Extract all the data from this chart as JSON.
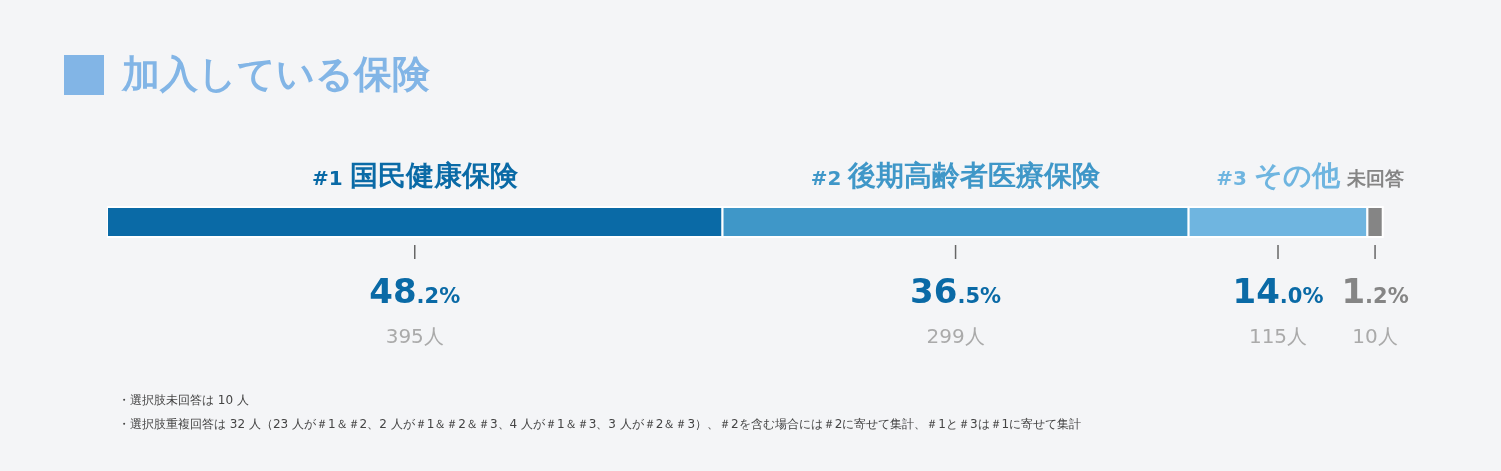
{
  "chart_data": {
    "type": "bar",
    "orientation": "horizontal",
    "stacked": true,
    "title": "加入している保険",
    "categories": [
      null
    ],
    "xlim": [
      0,
      100
    ],
    "tick_labels": false,
    "series": [
      {
        "name": "#1 国民健康保険",
        "color": "#0a6aa6",
        "values": [
          48.2
        ],
        "value_labels": [
          "48.2%"
        ]
      },
      {
        "name": "#2 後期高齢者医療保険",
        "color": "#3f97c8",
        "values": [
          36.5
        ],
        "value_labels": [
          "36.5%"
        ]
      },
      {
        "name": "#3 その他",
        "color": "#6fb5e0",
        "values": [
          14.0
        ],
        "value_labels": [
          "14.0%"
        ]
      },
      {
        "name": "未回答",
        "color": "#858585",
        "values": [
          1.2
        ],
        "value_labels": [
          "1.2%"
        ]
      }
    ],
    "annotations": [
      "395人",
      "299人",
      "115人",
      "10人",
      "・選択肢未回答は 10 人",
      "・選択肢重複回答は 32 人（23 人が＃1＆＃2、2 人が＃1＆＃2＆＃3、4 人が＃1＆＃3、3 人が＃2＆＃3）、＃2を含む場合には＃2に寄せて集計、＃1と＃3は＃1に寄せて集計"
    ]
  }
}
